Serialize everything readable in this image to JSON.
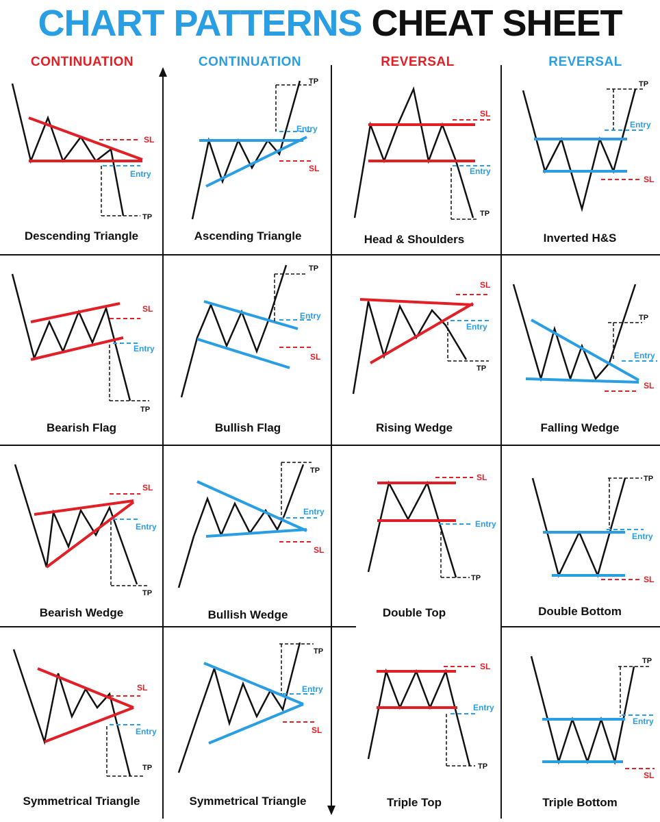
{
  "title": {
    "part1": "CHART PATTERNS",
    "part2": "CHEAT SHEET"
  },
  "colors": {
    "red": "#e01f26",
    "blue": "#2a9ee2",
    "black": "#111111"
  },
  "columns": [
    {
      "label": "CONTINUATION",
      "color": "#e01f26"
    },
    {
      "label": "CONTINUATION",
      "color": "#2a9ee2"
    },
    {
      "label": "REVERSAL",
      "color": "#e01f26"
    },
    {
      "label": "REVERSAL",
      "color": "#2a9ee2"
    }
  ],
  "markers": {
    "sl": "SL",
    "entry": "Entry",
    "tp": "TP"
  },
  "patterns": [
    {
      "name": "Descending Triangle",
      "color": "#e01f26"
    },
    {
      "name": "Ascending Triangle",
      "color": "#2a9ee2"
    },
    {
      "name": "Head & Shoulders",
      "color": "#e01f26"
    },
    {
      "name": "Inverted H&S",
      "color": "#2a9ee2"
    },
    {
      "name": "Bearish Flag",
      "color": "#e01f26"
    },
    {
      "name": "Bullish Flag",
      "color": "#2a9ee2"
    },
    {
      "name": "Rising Wedge",
      "color": "#e01f26"
    },
    {
      "name": "Falling Wedge",
      "color": "#2a9ee2"
    },
    {
      "name": "Bearish Wedge",
      "color": "#e01f26"
    },
    {
      "name": "Bullish Wedge",
      "color": "#2a9ee2"
    },
    {
      "name": "Double Top",
      "color": "#e01f26"
    },
    {
      "name": "Double Bottom",
      "color": "#2a9ee2"
    },
    {
      "name": "Symmetrical Triangle",
      "color": "#e01f26"
    },
    {
      "name": "Symmetrical Triangle",
      "color": "#2a9ee2"
    },
    {
      "name": "Triple Top",
      "color": "#e01f26"
    },
    {
      "name": "Triple Bottom",
      "color": "#2a9ee2"
    }
  ]
}
